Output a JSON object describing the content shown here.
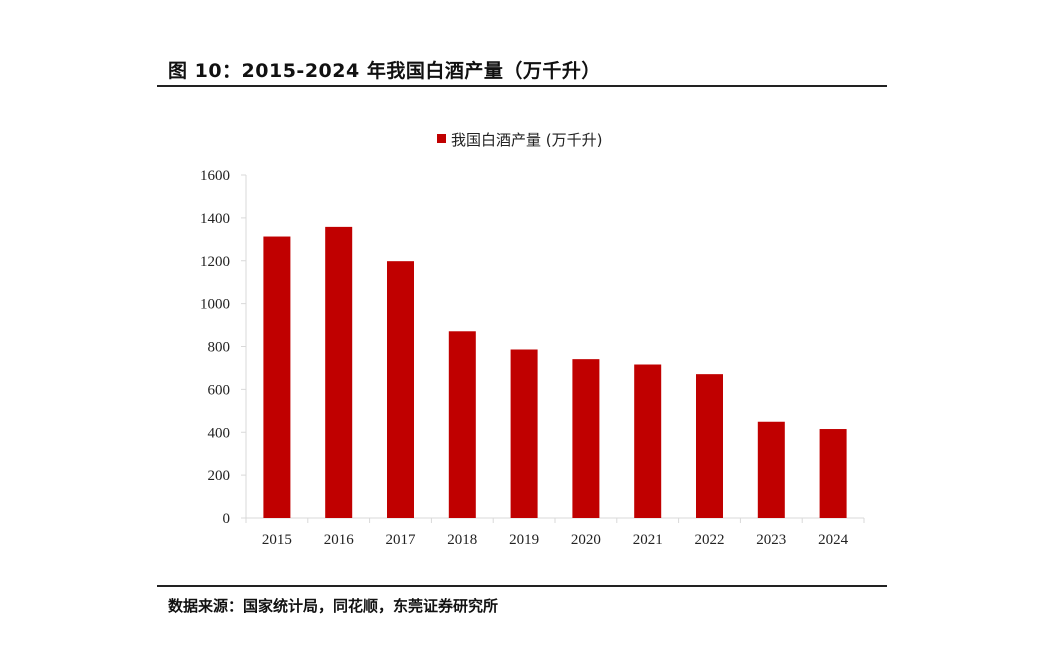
{
  "figure": {
    "title": "图 10：2015-2024 年我国白酒产量（万千升）",
    "source": "数据来源：国家统计局，同花顺，东莞证券研究所"
  },
  "chart_data": {
    "type": "bar",
    "title": "",
    "legend": [
      "我国白酒产量 (万千升)"
    ],
    "legend_position": "top-center",
    "categories": [
      "2015",
      "2016",
      "2017",
      "2018",
      "2019",
      "2020",
      "2021",
      "2022",
      "2023",
      "2024"
    ],
    "series": [
      {
        "name": "我国白酒产量 (万千升)",
        "values": [
          1313,
          1358,
          1198,
          871,
          786,
          741,
          716,
          671,
          449,
          415
        ],
        "color": "#c00000"
      }
    ],
    "xlabel": "",
    "ylabel": "",
    "ylim": [
      0,
      1600
    ],
    "yticks": [
      0,
      200,
      400,
      600,
      800,
      1000,
      1200,
      1400,
      1600
    ],
    "grid": false
  }
}
